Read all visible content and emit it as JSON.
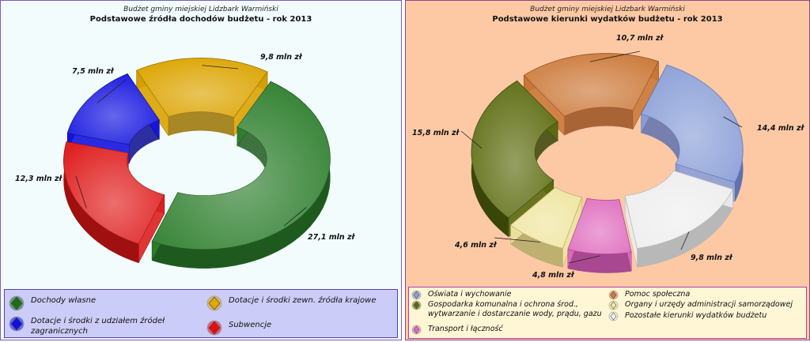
{
  "charts": [
    {
      "subtitle": "Budżet gminy miejskiej Lidzbark Warmiński",
      "title": "Podstawowe źródła dochodów budżetu - rok 2013"
    },
    {
      "subtitle": "Budżet gminy miejskiej Lidzbark Warmiński",
      "title": "Podstawowe kierunki wydatków budżetu - rok 2013"
    }
  ],
  "legend_left": [
    {
      "label": "Dochody własne",
      "color": "#1e6b1e"
    },
    {
      "label": "Dotacje i środki zewn. źródła krajowe",
      "color": "#e0a800"
    },
    {
      "label": "Dotacje i środki z udziałem źródeł zagranicznych",
      "color": "#1010e0"
    },
    {
      "label": "Subwencje",
      "color": "#e01010"
    }
  ],
  "legend_right": [
    {
      "label": "Oświata i wychowanie",
      "color": "#8aa0d8"
    },
    {
      "label": "Pomoc społeczna",
      "color": "#d07a3a"
    },
    {
      "label": "Gospodarka komunalna i ochrona środ., wytwarzanie i dostarczanie wody, prądu, gazu",
      "color": "#5a6a10"
    },
    {
      "label": "Organy i urzędy administracji samorządowej",
      "color": "#f0e8a0"
    },
    {
      "label": "Transport i łączność",
      "color": "#e070c0"
    },
    {
      "label": "Pozostałe kierunki wydatków budżetu",
      "color": "#f4f4f4"
    }
  ],
  "chart_data": [
    {
      "type": "pie",
      "variant": "3d-donut",
      "title": "Podstawowe źródła dochodów budżetu - rok 2013",
      "subtitle": "Budżet gminy miejskiej Lidzbark Warmiński",
      "unit": "mln zł",
      "slices": [
        {
          "name": "Dochody własne",
          "value": 27.1,
          "label": "27,1 mln zł",
          "color": "#2f7f2f",
          "dark": "#1e5a1e"
        },
        {
          "name": "Subwencje",
          "value": 12.3,
          "label": "12,3 mln zł",
          "color": "#e02020",
          "dark": "#a01010"
        },
        {
          "name": "Dotacje i środki z udziałem źródeł zagranicznych",
          "value": 7.5,
          "label": "7,5 mln zł",
          "color": "#1414e0",
          "dark": "#0a0a90"
        },
        {
          "name": "Dotacje i środki zewn. źródła krajowe",
          "value": 9.8,
          "label": "9,8 mln zł",
          "color": "#dca400",
          "dark": "#9a7200"
        }
      ],
      "legend": "bottom"
    },
    {
      "type": "pie",
      "variant": "3d-donut",
      "title": "Podstawowe kierunki wydatków budżetu - rok 2013",
      "subtitle": "Budżet gminy miejskiej Lidzbark Warmiński",
      "unit": "mln zł",
      "slices": [
        {
          "name": "Oświata i wychowanie",
          "value": 14.4,
          "label": "14,4 mln zł",
          "color": "#8ca0d8",
          "dark": "#5f72b0"
        },
        {
          "name": "Pozostałe kierunki wydatków budżetu",
          "value": 9.8,
          "label": "9,8 mln zł",
          "color": "#eeeeee",
          "dark": "#b8b8b8"
        },
        {
          "name": "Transport i łączność",
          "value": 4.8,
          "label": "4,8 mln zł",
          "color": "#e070c0",
          "dark": "#a84890"
        },
        {
          "name": "Organy i urzędy administracji samorządowej",
          "value": 4.6,
          "label": "4,6 mln zł",
          "color": "#efe6a0",
          "dark": "#bdb070"
        },
        {
          "name": "Gospodarka komunalna i ochrona środ., wytwarzanie i dostarczanie wody, prądu, gazu",
          "value": 15.8,
          "label": "15,8 mln zł",
          "color": "#5c6c10",
          "dark": "#3a4608"
        },
        {
          "name": "Pomoc społeczna",
          "value": 10.7,
          "label": "10,7 mln zł",
          "color": "#cc7a3a",
          "dark": "#9a5222"
        }
      ],
      "legend": "bottom"
    }
  ]
}
